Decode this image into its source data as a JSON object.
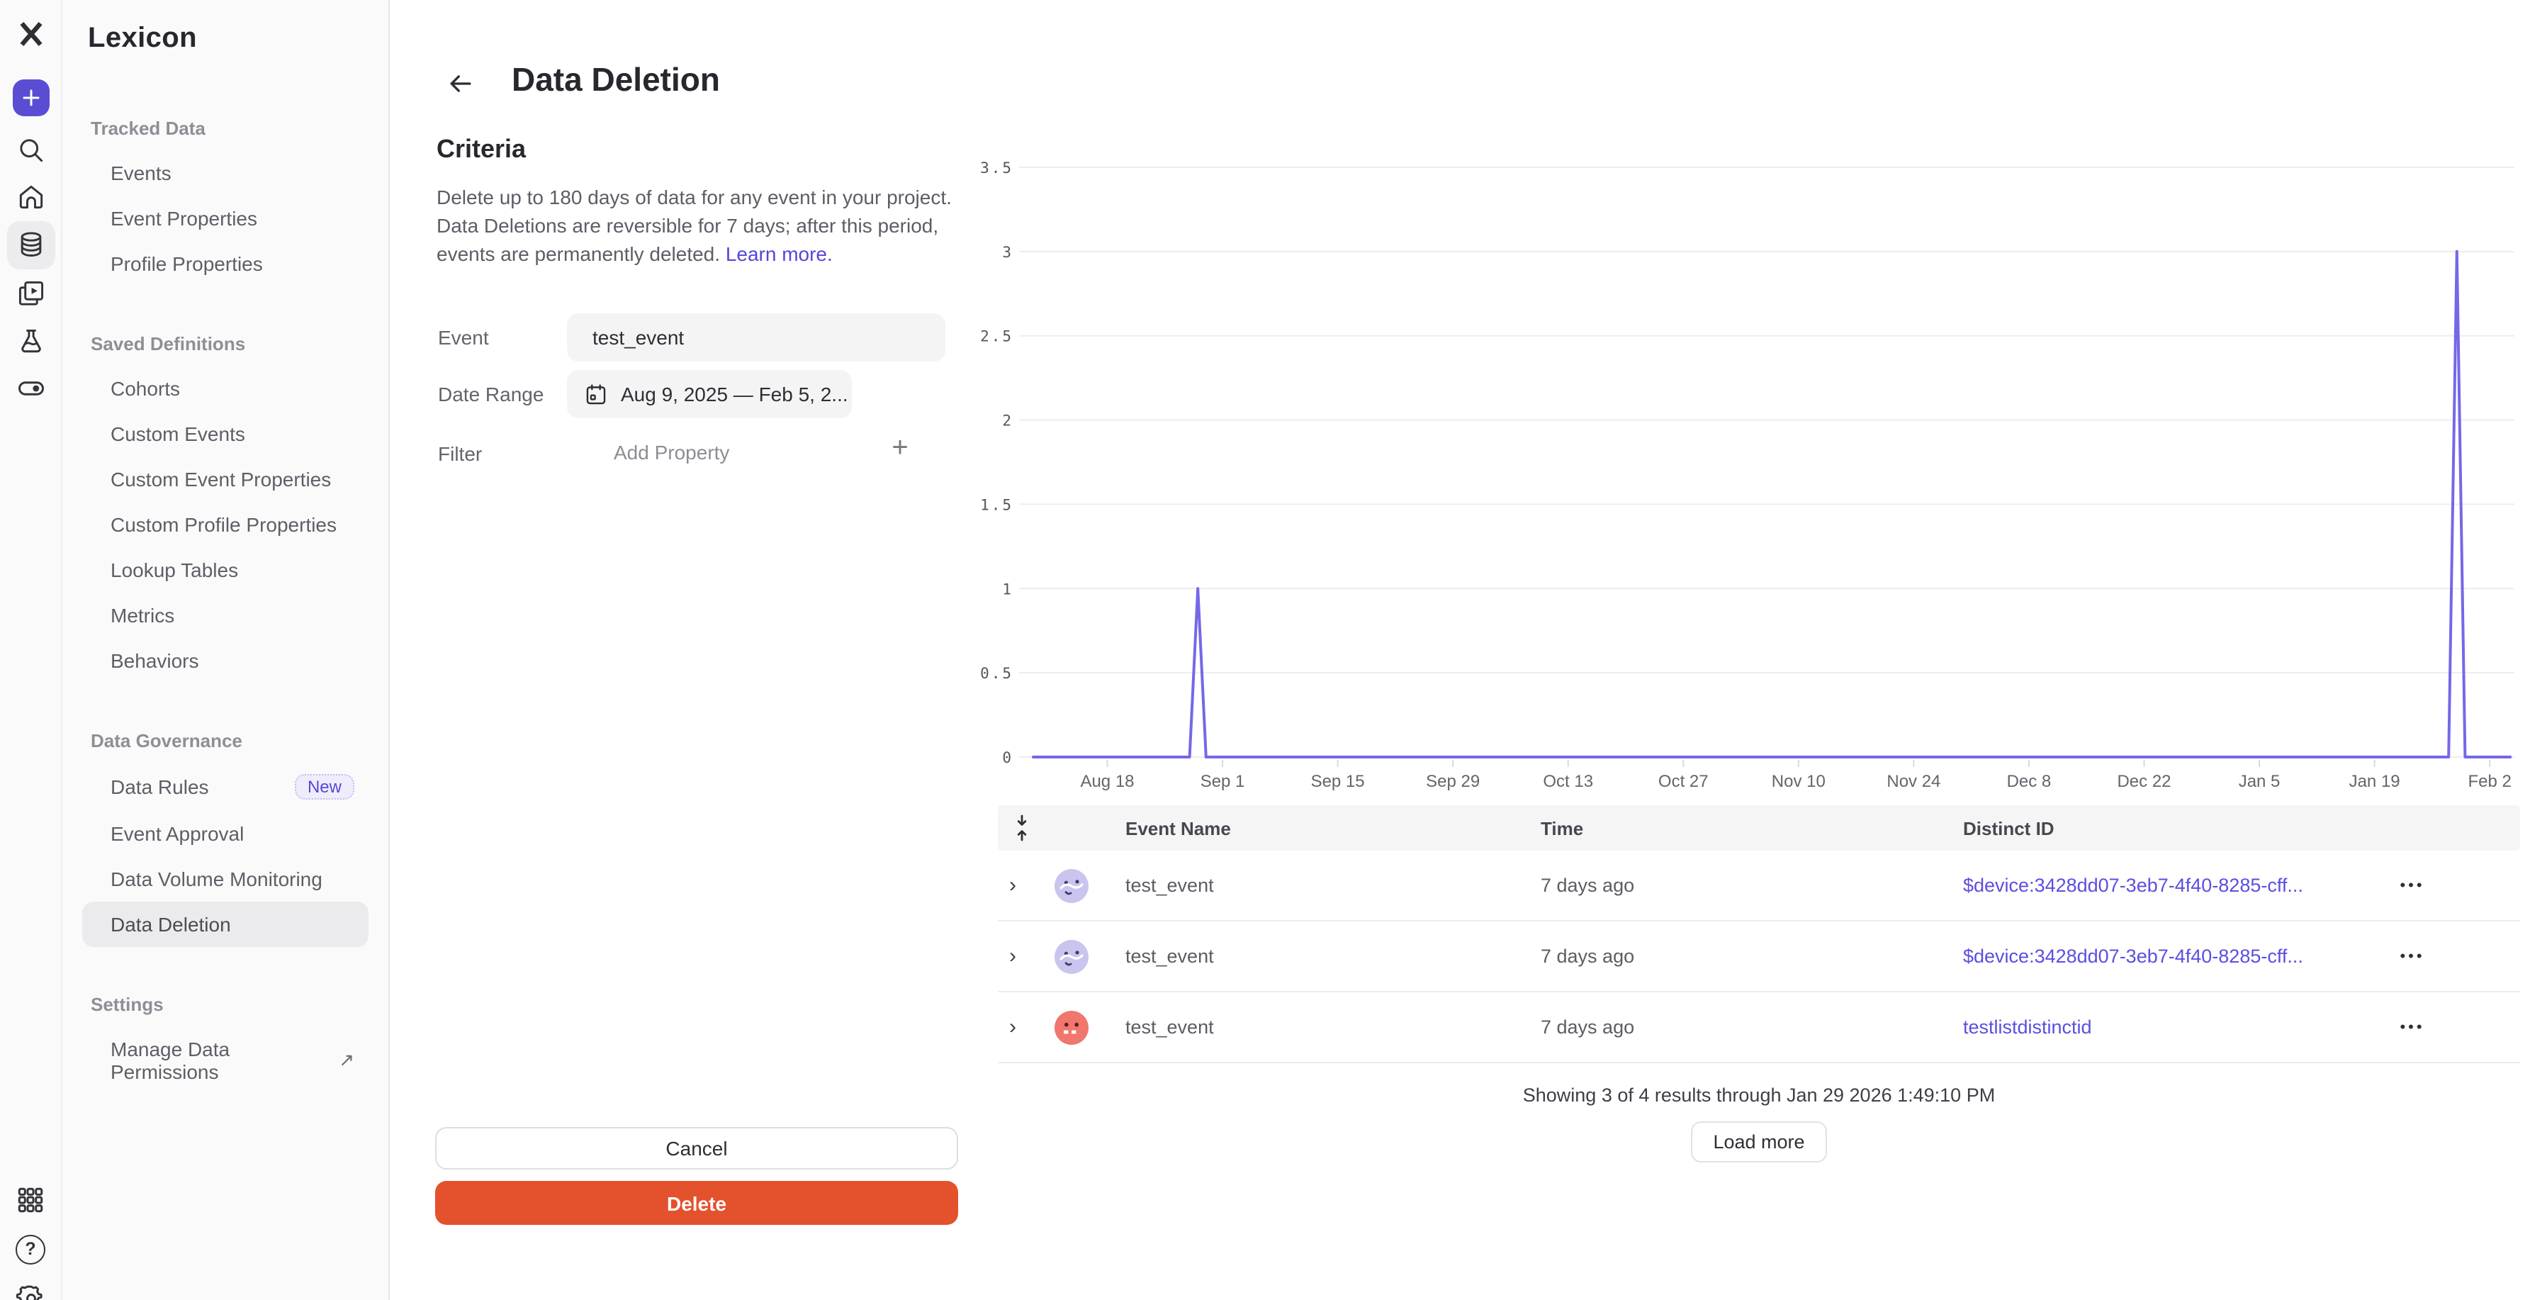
{
  "app_title": "Lexicon",
  "colors": {
    "accent_purple": "#5b4cd4",
    "link_purple": "#5546d9",
    "distinct_id_link": "#5a4fe0",
    "chart_line": "#7468e8",
    "delete_red": "#e4512d",
    "sidebar_bg": "#fafafa",
    "selected_item_bg": "#ebebed",
    "avatar_lavender": "#c9c5ee",
    "avatar_red": "#f0766e"
  },
  "icon_rail": {
    "top_icons": [
      "mixpanel-logo",
      "create-plus-icon",
      "search-icon",
      "home-icon",
      "database-icon",
      "boards-icon",
      "experiments-flask-icon",
      "feature-flags-toggle-icon"
    ],
    "bottom_icons": [
      "apps-grid-icon",
      "help-icon",
      "settings-gear-icon"
    ],
    "active_icon": "database-icon"
  },
  "sidebar": {
    "title": "Lexicon",
    "sections": [
      {
        "label": "Tracked Data",
        "items": [
          {
            "label": "Events"
          },
          {
            "label": "Event Properties"
          },
          {
            "label": "Profile Properties"
          }
        ]
      },
      {
        "label": "Saved Definitions",
        "items": [
          {
            "label": "Cohorts"
          },
          {
            "label": "Custom Events"
          },
          {
            "label": "Custom Event Properties"
          },
          {
            "label": "Custom Profile Properties"
          },
          {
            "label": "Lookup Tables"
          },
          {
            "label": "Metrics"
          },
          {
            "label": "Behaviors"
          }
        ]
      },
      {
        "label": "Data Governance",
        "items": [
          {
            "label": "Data Rules",
            "badge": "New"
          },
          {
            "label": "Event Approval"
          },
          {
            "label": "Data Volume Monitoring"
          },
          {
            "label": "Data Deletion",
            "selected": true
          }
        ]
      },
      {
        "label": "Settings",
        "items": [
          {
            "label": "Manage Data Permissions",
            "external": true
          }
        ]
      }
    ]
  },
  "header": {
    "title": "Data Deletion"
  },
  "criteria": {
    "heading": "Criteria",
    "description": "Delete up to 180 days of data for any event in your project. Data Deletions are reversible for 7 days; after this period, events are permanently deleted. ",
    "learn_more_label": "Learn more.",
    "event_label": "Event",
    "event_value": "test_event",
    "date_range_label": "Date Range",
    "date_range_value": "Aug 9, 2025 — Feb 5, 2...",
    "filter_label": "Filter",
    "add_property_label": "Add Property",
    "cancel_label": "Cancel",
    "delete_label": "Delete"
  },
  "chart_data": {
    "type": "line",
    "title": "",
    "xlabel": "",
    "ylabel": "",
    "grid": true,
    "x_axis": {
      "start": "Aug 9, 2025",
      "end": "Feb 5, 2026",
      "total_days": 180,
      "tick_labels": [
        "Aug 18",
        "Sep 1",
        "Sep 15",
        "Sep 29",
        "Oct 13",
        "Oct 27",
        "Nov 10",
        "Nov 24",
        "Dec 8",
        "Dec 22",
        "Jan 5",
        "Jan 19",
        "Feb 2"
      ],
      "tick_days": [
        9,
        23,
        37,
        51,
        65,
        79,
        93,
        107,
        121,
        135,
        149,
        163,
        177
      ]
    },
    "y_axis": {
      "min": 0,
      "max": 3.5,
      "ticks": [
        0,
        0.5,
        1,
        1.5,
        2,
        2.5,
        3,
        3.5
      ]
    },
    "series": [
      {
        "name": "test_event",
        "color": "#7468e8",
        "points": [
          {
            "day": 0,
            "value": 0
          },
          {
            "day": 19,
            "value": 0
          },
          {
            "day": 20,
            "value": 1
          },
          {
            "day": 21,
            "value": 0
          },
          {
            "day": 172,
            "value": 0
          },
          {
            "day": 173,
            "value": 3
          },
          {
            "day": 174,
            "value": 0
          },
          {
            "day": 179.5,
            "value": 0
          }
        ]
      }
    ],
    "peaks": [
      {
        "date": "Aug 29, 2025",
        "value": 1
      },
      {
        "date": "Jan 29, 2026",
        "value": 3
      }
    ]
  },
  "table": {
    "headers": [
      "Event Name",
      "Time",
      "Distinct ID"
    ],
    "rows": [
      {
        "event_name": "test_event",
        "time": "7 days ago",
        "distinct_id": "$device:3428dd07-3eb7-4f40-8285-cff...",
        "avatar": "lavender-face"
      },
      {
        "event_name": "test_event",
        "time": "7 days ago",
        "distinct_id": "$device:3428dd07-3eb7-4f40-8285-cff...",
        "avatar": "lavender-face"
      },
      {
        "event_name": "test_event",
        "time": "7 days ago",
        "distinct_id": "testlistdistinctid",
        "avatar": "red-face"
      }
    ],
    "footer_text": "Showing 3 of 4 results through Jan 29 2026 1:49:10 PM",
    "load_more_label": "Load more"
  }
}
